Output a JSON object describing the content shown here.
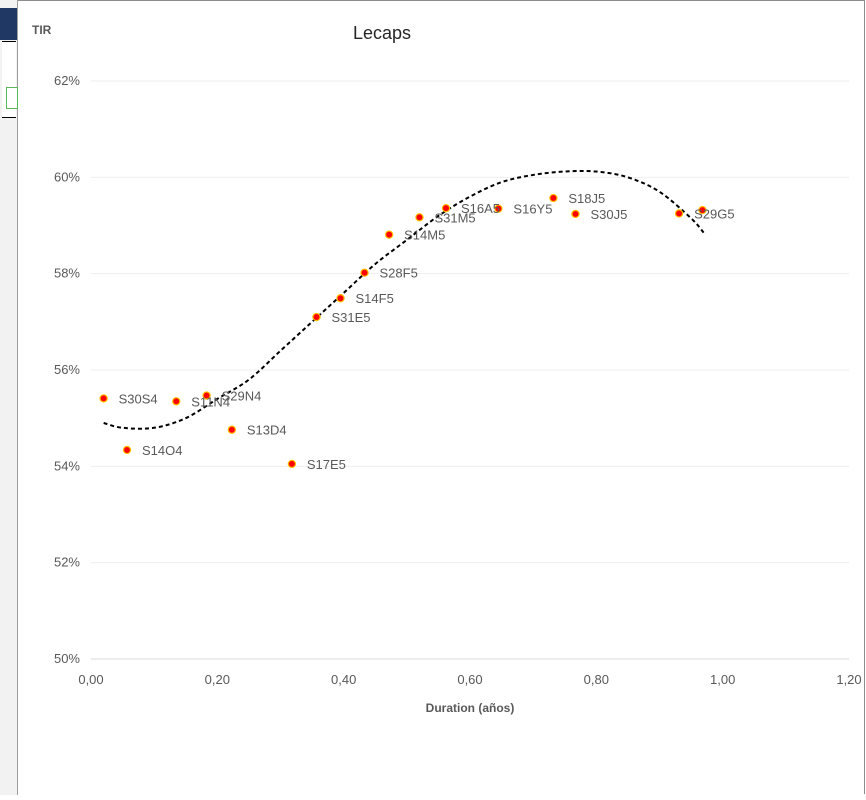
{
  "chart_data": {
    "type": "scatter",
    "title": "Lecaps",
    "xlabel": "Duration (años)",
    "ylabel": "TIR",
    "xlim": [
      0,
      1.2
    ],
    "ylim": [
      0.5,
      0.62
    ],
    "x_ticks": [
      "0,00",
      "0,20",
      "0,40",
      "0,60",
      "0,80",
      "1,00",
      "1,20"
    ],
    "y_ticks": [
      "50%",
      "52%",
      "54%",
      "56%",
      "58%",
      "60%",
      "62%"
    ],
    "grid": true,
    "legend": "none",
    "colors": {
      "marker": "#ff0000",
      "marker_edge": "#ffc000",
      "label": "#595959",
      "trendline": "#000000"
    },
    "points": [
      {
        "label": "S30S4",
        "x": 0.02,
        "y": 0.5541
      },
      {
        "label": "S14O4",
        "x": 0.057,
        "y": 0.5434
      },
      {
        "label": "S11N4",
        "x": 0.135,
        "y": 0.5535
      },
      {
        "label": "S29N4",
        "x": 0.183,
        "y": 0.5547
      },
      {
        "label": "S13D4",
        "x": 0.223,
        "y": 0.5476
      },
      {
        "label": "S17E5",
        "x": 0.318,
        "y": 0.5405
      },
      {
        "label": "S31E5",
        "x": 0.357,
        "y": 0.571
      },
      {
        "label": "S14F5",
        "x": 0.395,
        "y": 0.5749
      },
      {
        "label": "S28F5",
        "x": 0.433,
        "y": 0.5802
      },
      {
        "label": "S14M5",
        "x": 0.472,
        "y": 0.5881
      },
      {
        "label": "S31M5",
        "x": 0.52,
        "y": 0.5917
      },
      {
        "label": "S16A5",
        "x": 0.562,
        "y": 0.5936
      },
      {
        "label": "S16Y5",
        "x": 0.645,
        "y": 0.5935
      },
      {
        "label": "S18J5",
        "x": 0.732,
        "y": 0.5957
      },
      {
        "label": "S30J5",
        "x": 0.767,
        "y": 0.5924
      },
      {
        "label": "S29G5",
        "x": 0.931,
        "y": 0.5925
      },
      {
        "label": "",
        "x": 0.968,
        "y": 0.5932
      }
    ],
    "trendline": {
      "type": "polynomial",
      "style": "dashed",
      "x": [
        0.02,
        0.05,
        0.1,
        0.15,
        0.2,
        0.25,
        0.3,
        0.35,
        0.4,
        0.45,
        0.5,
        0.55,
        0.6,
        0.65,
        0.7,
        0.75,
        0.8,
        0.85,
        0.9,
        0.95,
        0.97
      ],
      "y": [
        0.549,
        0.548,
        0.548,
        0.55,
        0.554,
        0.558,
        0.564,
        0.57,
        0.576,
        0.582,
        0.587,
        0.592,
        0.596,
        0.599,
        0.6005,
        0.6012,
        0.6012,
        0.6,
        0.597,
        0.5915,
        0.5885
      ]
    }
  }
}
